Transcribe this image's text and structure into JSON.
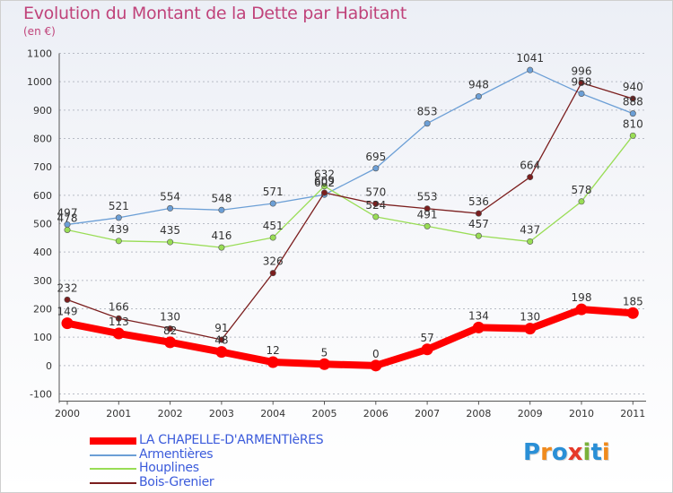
{
  "title": "Evolution du Montant de la Dette par Habitant",
  "subtitle": "(en €)",
  "logo": {
    "text": "Proxiti",
    "letter_colors": [
      "#2a8fd6",
      "#f08a1c",
      "#2a8fd6",
      "#e63a2a",
      "#7ab23a",
      "#2a8fd6",
      "#f08a1c"
    ]
  },
  "chart_data": {
    "type": "line",
    "title": "Evolution du Montant de la Dette par Habitant",
    "ylabel": "(en €)",
    "xlabel": "",
    "ylim": [
      -100,
      1100
    ],
    "yticks": [
      -100,
      0,
      100,
      200,
      300,
      400,
      500,
      600,
      700,
      800,
      900,
      1000,
      1100
    ],
    "categories": [
      "2000",
      "2001",
      "2002",
      "2003",
      "2004",
      "2005",
      "2006",
      "2007",
      "2008",
      "2009",
      "2010",
      "2011"
    ],
    "grid": "horizontal dashed",
    "legend_position": "bottom-left",
    "series": [
      {
        "name": "LA CHAPELLE-D'ARMENTIèRES",
        "color": "#ff0000",
        "values": [
          149,
          113,
          82,
          48,
          12,
          5,
          0,
          57,
          134,
          130,
          198,
          185
        ],
        "labels": [
          "149",
          "113",
          "82",
          "48",
          "12",
          "5",
          "0",
          "57",
          "134",
          "130",
          "198",
          "185"
        ]
      },
      {
        "name": "Armentières",
        "color": "#6c9fd6",
        "values": [
          497,
          521,
          554,
          548,
          571,
          602,
          695,
          853,
          948,
          1041,
          958,
          888
        ],
        "labels": [
          "497",
          "521",
          "554",
          "548",
          "571",
          "602",
          "695",
          "853",
          "948",
          "1041",
          "958",
          "888"
        ]
      },
      {
        "name": "Houplines",
        "color": "#99dd55",
        "values": [
          478,
          439,
          435,
          416,
          451,
          632,
          524,
          491,
          457,
          437,
          578,
          810
        ],
        "labels": [
          "478",
          "439",
          "435",
          "416",
          "451",
          "632",
          "524",
          "491",
          "457",
          "437",
          "578",
          "810"
        ]
      },
      {
        "name": "Bois-Grenier",
        "color": "#7b1e1e",
        "values": [
          232,
          166,
          130,
          91,
          326,
          609,
          570,
          553,
          536,
          664,
          996,
          940
        ],
        "labels": [
          "232",
          "166",
          "130",
          "91",
          "326",
          "609",
          "570",
          "553",
          "536",
          "664",
          "996",
          "940"
        ]
      }
    ]
  }
}
